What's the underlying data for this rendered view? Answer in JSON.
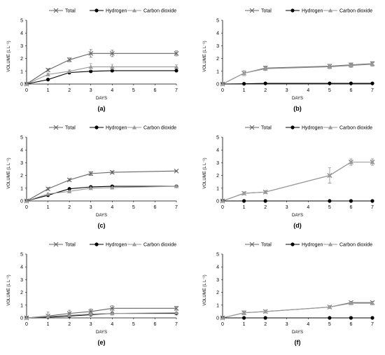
{
  "colors": {
    "Total": "#666666",
    "Hydrogen": "#000000",
    "Carbon dioxide": "#9a9a9a"
  },
  "chart_data": [
    {
      "label": "(a)",
      "type": "line",
      "xlabel": "DAYS",
      "ylabel": "VOLUME (L L⁻¹)",
      "xlim": [
        0,
        7
      ],
      "ylim": [
        0,
        5
      ],
      "xticks": [
        0,
        1,
        2,
        3,
        4,
        5,
        6,
        7
      ],
      "yticks": [
        0,
        1,
        2,
        3,
        4,
        5
      ],
      "legend": "top-center",
      "grid": false,
      "series": [
        {
          "name": "Total",
          "marker": "x",
          "x": [
            0,
            1,
            2,
            3,
            4,
            7
          ],
          "y": [
            0,
            1.1,
            1.9,
            2.4,
            2.4,
            2.4
          ],
          "err": [
            0,
            0.1,
            0.15,
            0.3,
            0.25,
            0.2
          ]
        },
        {
          "name": "Hydrogen",
          "marker": "circle",
          "x": [
            0,
            1,
            2,
            3,
            4,
            7
          ],
          "y": [
            0,
            0.35,
            0.9,
            1.0,
            1.05,
            1.05
          ],
          "err": [
            0,
            0.05,
            0.1,
            0.1,
            0.1,
            0.05
          ]
        },
        {
          "name": "Carbon dioxide",
          "marker": "triangle",
          "x": [
            0,
            1,
            2,
            3,
            4,
            7
          ],
          "y": [
            0,
            0.75,
            1.0,
            1.35,
            1.35,
            1.35
          ],
          "err": [
            0,
            0.1,
            0.1,
            0.25,
            0.2,
            0.15
          ]
        }
      ]
    },
    {
      "label": "(b)",
      "type": "line",
      "xlabel": "DAYS",
      "ylabel": "VOLUME (L L⁻¹)",
      "xlim": [
        0,
        7
      ],
      "ylim": [
        0,
        5
      ],
      "xticks": [
        0,
        1,
        2,
        3,
        4,
        5,
        6,
        7
      ],
      "yticks": [
        0,
        1,
        2,
        3,
        4,
        5
      ],
      "legend": "top-center",
      "grid": false,
      "series": [
        {
          "name": "Total",
          "marker": "x",
          "x": [
            0,
            1,
            2,
            5,
            6,
            7
          ],
          "y": [
            0,
            0.85,
            1.25,
            1.4,
            1.5,
            1.6
          ],
          "err": [
            0,
            0.2,
            0.15,
            0.15,
            0.15,
            0.15
          ]
        },
        {
          "name": "Hydrogen",
          "marker": "circle",
          "x": [
            0,
            1,
            2,
            5,
            6,
            7
          ],
          "y": [
            0,
            0.02,
            0.05,
            0.05,
            0.05,
            0.05
          ],
          "err": [
            0,
            0,
            0,
            0,
            0,
            0
          ]
        },
        {
          "name": "Carbon dioxide",
          "marker": "triangle",
          "x": [
            0,
            1,
            2,
            5,
            6,
            7
          ],
          "y": [
            0,
            0.85,
            1.2,
            1.35,
            1.45,
            1.55
          ],
          "err": [
            0,
            0.2,
            0.15,
            0.15,
            0.15,
            0.15
          ]
        }
      ]
    },
    {
      "label": "(c)",
      "type": "line",
      "xlabel": "DAYS",
      "ylabel": "VOLUME (L L⁻¹)",
      "xlim": [
        0,
        7
      ],
      "ylim": [
        0,
        5
      ],
      "xticks": [
        0,
        1,
        2,
        3,
        4,
        5,
        6,
        7
      ],
      "yticks": [
        0,
        1,
        2,
        3,
        4,
        5
      ],
      "legend": "top-center",
      "grid": false,
      "series": [
        {
          "name": "Total",
          "marker": "x",
          "x": [
            0,
            1,
            2,
            3,
            4,
            7
          ],
          "y": [
            0,
            0.95,
            1.65,
            2.15,
            2.25,
            2.35
          ],
          "err": [
            0,
            0.1,
            0.1,
            0.15,
            0.1,
            0.05
          ]
        },
        {
          "name": "Hydrogen",
          "marker": "circle",
          "x": [
            0,
            1,
            2,
            3,
            4,
            7
          ],
          "y": [
            0,
            0.45,
            0.95,
            1.1,
            1.15,
            1.15
          ],
          "err": [
            0,
            0.05,
            0.05,
            0.05,
            0.05,
            0.05
          ]
        },
        {
          "name": "Carbon dioxide",
          "marker": "triangle",
          "x": [
            0,
            1,
            2,
            3,
            4,
            7
          ],
          "y": [
            0,
            0.55,
            0.75,
            1.0,
            1.05,
            1.15
          ],
          "err": [
            0,
            0.05,
            0.05,
            0.1,
            0.05,
            0.05
          ]
        }
      ]
    },
    {
      "label": "(d)",
      "type": "line",
      "xlabel": "DAYS",
      "ylabel": "VOLUME (L L⁻¹)",
      "xlim": [
        0,
        7
      ],
      "ylim": [
        0,
        5
      ],
      "xticks": [
        0,
        1,
        2,
        3,
        4,
        5,
        6,
        7
      ],
      "yticks": [
        0,
        1,
        2,
        3,
        4,
        5
      ],
      "legend": "top-center",
      "grid": false,
      "series": [
        {
          "name": "Total",
          "marker": "x",
          "x": [
            0,
            1,
            2,
            5,
            6,
            7
          ],
          "y": [
            0,
            0.6,
            0.7,
            2.0,
            3.05,
            3.05
          ],
          "err": [
            0,
            0.1,
            0.1,
            0.6,
            0.25,
            0.25
          ]
        },
        {
          "name": "Hydrogen",
          "marker": "circle",
          "x": [
            0,
            1,
            2,
            5,
            6,
            7
          ],
          "y": [
            0,
            0,
            0,
            0,
            0,
            0
          ],
          "err": [
            0,
            0,
            0,
            0,
            0,
            0
          ]
        },
        {
          "name": "Carbon dioxide",
          "marker": "triangle",
          "x": [
            0,
            1,
            2,
            5,
            6,
            7
          ],
          "y": [
            0,
            0.6,
            0.7,
            2.0,
            3.05,
            3.05
          ],
          "err": [
            0,
            0.1,
            0.1,
            0.6,
            0.25,
            0.25
          ]
        }
      ]
    },
    {
      "label": "(e)",
      "type": "line",
      "xlabel": "DAYS",
      "ylabel": "VOLUME (L L⁻¹)",
      "xlim": [
        0,
        7
      ],
      "ylim": [
        0,
        5
      ],
      "xticks": [
        0,
        1,
        2,
        3,
        4,
        5,
        6,
        7
      ],
      "yticks": [
        0,
        1,
        2,
        3,
        4,
        5
      ],
      "legend": "top-center",
      "grid": false,
      "series": [
        {
          "name": "Total",
          "marker": "x",
          "x": [
            0,
            1,
            2,
            3,
            4,
            7
          ],
          "y": [
            0,
            0.15,
            0.35,
            0.5,
            0.75,
            0.75
          ],
          "err": [
            0,
            0.3,
            0.25,
            0.2,
            0.2,
            0.15
          ]
        },
        {
          "name": "Hydrogen",
          "marker": "circle",
          "x": [
            0,
            1,
            2,
            3,
            4,
            7
          ],
          "y": [
            0,
            0.05,
            0.15,
            0.25,
            0.35,
            0.35
          ],
          "err": [
            0,
            0.02,
            0.05,
            0.05,
            0.05,
            0.05
          ]
        },
        {
          "name": "Carbon dioxide",
          "marker": "triangle",
          "x": [
            0,
            1,
            2,
            3,
            4,
            7
          ],
          "y": [
            0,
            0.1,
            0.2,
            0.3,
            0.35,
            0.4
          ],
          "err": [
            0,
            0.05,
            0.05,
            0.05,
            0.05,
            0.05
          ]
        }
      ]
    },
    {
      "label": "(f)",
      "type": "line",
      "xlabel": "DAYS",
      "ylabel": "VOLUME (L L⁻¹)",
      "xlim": [
        0,
        7
      ],
      "ylim": [
        0,
        5
      ],
      "xticks": [
        0,
        1,
        2,
        3,
        4,
        5,
        6,
        7
      ],
      "yticks": [
        0,
        1,
        2,
        3,
        4,
        5
      ],
      "legend": "top-center",
      "grid": false,
      "series": [
        {
          "name": "Total",
          "marker": "x",
          "x": [
            0,
            1,
            2,
            5,
            6,
            7
          ],
          "y": [
            0,
            0.4,
            0.5,
            0.85,
            1.2,
            1.2
          ],
          "err": [
            0,
            0.15,
            0.1,
            0.1,
            0.1,
            0.1
          ]
        },
        {
          "name": "Hydrogen",
          "marker": "circle",
          "x": [
            0,
            1,
            2,
            5,
            6,
            7
          ],
          "y": [
            0,
            0,
            0,
            0,
            0,
            0
          ],
          "err": [
            0,
            0,
            0,
            0,
            0,
            0
          ]
        },
        {
          "name": "Carbon dioxide",
          "marker": "triangle",
          "x": [
            0,
            1,
            2,
            5,
            6,
            7
          ],
          "y": [
            0,
            0.4,
            0.5,
            0.85,
            1.15,
            1.15
          ],
          "err": [
            0,
            0.15,
            0.1,
            0.1,
            0.1,
            0.1
          ]
        }
      ]
    }
  ]
}
